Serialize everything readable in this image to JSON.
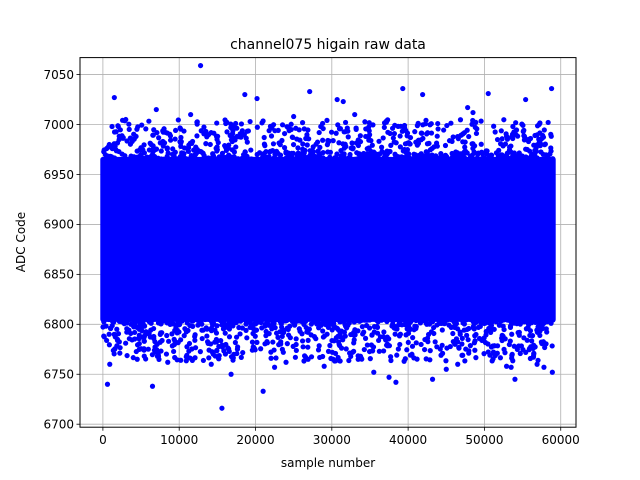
{
  "chart_data": {
    "type": "scatter",
    "title": "channel075 higain raw data",
    "xlabel": "sample number",
    "ylabel": "ADC Code",
    "xlim": [
      -3000,
      62000
    ],
    "ylim": [
      6697,
      7067
    ],
    "xticks": [
      0,
      10000,
      20000,
      30000,
      40000,
      50000,
      60000
    ],
    "xtick_labels": [
      "0",
      "10000",
      "20000",
      "30000",
      "40000",
      "50000",
      "60000"
    ],
    "yticks": [
      6700,
      6750,
      6800,
      6850,
      6900,
      6950,
      7000,
      7050
    ],
    "ytick_labels": [
      "6700",
      "6750",
      "6800",
      "6850",
      "6900",
      "6950",
      "7000",
      "7050"
    ],
    "grid": true,
    "series": [
      {
        "color": "#0000ff",
        "marker": "circle",
        "bulk_band": {
          "x_range": [
            0,
            59000
          ],
          "y_range": [
            6805,
            6965
          ]
        },
        "outliers_x": [
          12800,
          15600,
          21000,
          1500,
          39300,
          41900,
          55400,
          58800,
          50500,
          27100,
          30700,
          31500,
          18600,
          20200,
          600,
          6500,
          900,
          54000,
          52900,
          37500,
          43200,
          38400,
          57800,
          56900,
          7000,
          47800,
          3000,
          11500,
          25000,
          48500,
          33000,
          1200,
          22500,
          8500,
          45000,
          35500,
          14200,
          29000,
          58900,
          16800,
          24000,
          4500,
          40500,
          46500,
          10200,
          53500
        ],
        "outliers_y": [
          7059,
          6716,
          6733,
          7027,
          7036,
          7030,
          7025,
          7036,
          7031,
          7033,
          7025,
          7023,
          7030,
          7026,
          6740,
          6738,
          6760,
          6745,
          6758,
          6747,
          6745,
          6742,
          6757,
          6760,
          7015,
          7017,
          7005,
          7010,
          7008,
          7012,
          7010,
          6998,
          6757,
          6762,
          6755,
          6752,
          6760,
          6758,
          6752,
          6750,
          6762,
          6765,
          6770,
          6760,
          6764,
          6757
        ]
      }
    ]
  }
}
